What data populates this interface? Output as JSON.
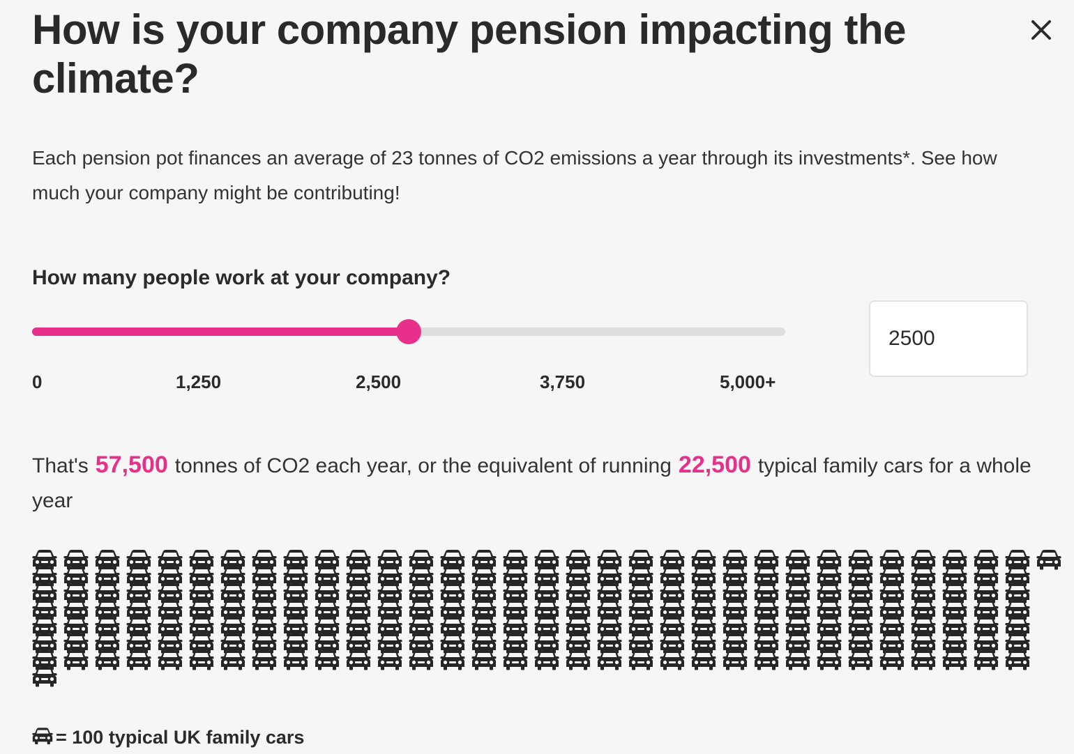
{
  "header": {
    "title": "How is your company pension impacting the climate?",
    "close_icon": "close-icon"
  },
  "intro": {
    "text": "Each pension pot finances an average of 23 tonnes of CO2 emissions a year through its investments*. See how much your company might be contributing!"
  },
  "employees": {
    "question": "How many people work at your company?",
    "slider": {
      "min": 0,
      "max": 5000,
      "value": 2500,
      "ticks": [
        "0",
        "1,250",
        "2,500",
        "3,750",
        "5,000+"
      ],
      "fill_color": "#e6308a",
      "track_color": "#dedede"
    },
    "input_value": "2500"
  },
  "result": {
    "prefix": "That's",
    "tonnes": "57,500",
    "middle": "tonnes of CO2 each year, or the equivalent of running",
    "cars": "22,500",
    "suffix": "typical family cars for a whole year",
    "highlight_color": "#e6308a"
  },
  "car_grid": {
    "icon": "car-icon",
    "count": 225
  },
  "legend": {
    "icon": "car-icon",
    "text": "= 100 typical UK family cars"
  }
}
